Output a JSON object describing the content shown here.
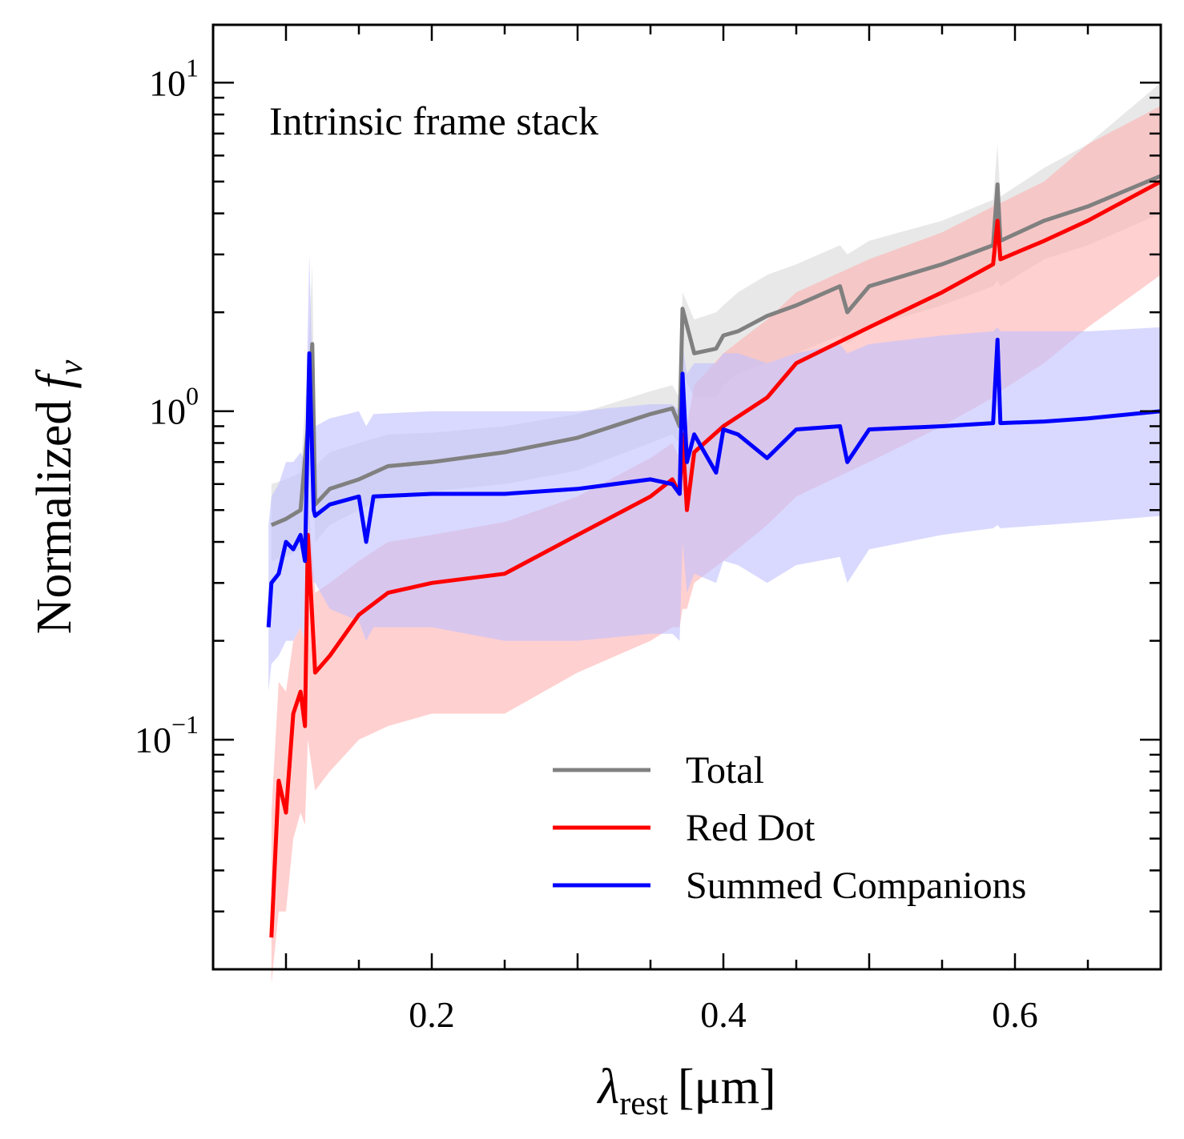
{
  "chart_data": {
    "type": "line",
    "title": "",
    "annotation": "Intrinsic frame stack",
    "xlabel": {
      "symbol": "λ",
      "subscript": "rest",
      "unit": "[μm]"
    },
    "ylabel": {
      "text": "Normalized",
      "symbol": "f",
      "subscript": "ν"
    },
    "xlim": [
      0.05,
      0.7
    ],
    "ylim": [
      0.02,
      15
    ],
    "yscale": "log",
    "xticks": [
      {
        "value": 0.2,
        "label": "0.2"
      },
      {
        "value": 0.4,
        "label": "0.4"
      },
      {
        "value": 0.6,
        "label": "0.6"
      }
    ],
    "yticks": [
      {
        "value": 0.1,
        "base": "10",
        "exp": "−1"
      },
      {
        "value": 1,
        "base": "10",
        "exp": "0"
      },
      {
        "value": 10,
        "base": "10",
        "exp": "1"
      }
    ],
    "legend": {
      "position": "lower-right"
    },
    "grid": false,
    "series": [
      {
        "name": "Total",
        "color": "#808080",
        "band_color": "#d9d9d9",
        "x": [
          0.09,
          0.1,
          0.11,
          0.115,
          0.118,
          0.12,
          0.13,
          0.15,
          0.17,
          0.2,
          0.25,
          0.3,
          0.35,
          0.365,
          0.37,
          0.372,
          0.38,
          0.395,
          0.4,
          0.41,
          0.43,
          0.45,
          0.48,
          0.485,
          0.5,
          0.55,
          0.585,
          0.588,
          0.59,
          0.62,
          0.65,
          0.7
        ],
        "y": [
          0.45,
          0.47,
          0.5,
          0.9,
          1.6,
          0.52,
          0.58,
          0.62,
          0.68,
          0.7,
          0.75,
          0.83,
          0.98,
          1.02,
          0.9,
          2.05,
          1.5,
          1.55,
          1.7,
          1.75,
          1.95,
          2.1,
          2.4,
          2.0,
          2.4,
          2.8,
          3.2,
          4.9,
          3.3,
          3.8,
          4.2,
          5.2
        ],
        "lower": [
          0.35,
          0.36,
          0.38,
          0.55,
          0.8,
          0.4,
          0.45,
          0.5,
          0.55,
          0.57,
          0.6,
          0.66,
          0.8,
          0.85,
          0.8,
          1.3,
          1.1,
          1.1,
          1.2,
          1.3,
          1.4,
          1.5,
          1.7,
          1.6,
          1.8,
          2.1,
          2.4,
          2.5,
          2.4,
          2.9,
          3.2,
          4.0
        ],
        "upper": [
          0.6,
          0.62,
          0.65,
          1.4,
          2.8,
          0.68,
          0.75,
          0.8,
          0.85,
          0.86,
          0.9,
          0.98,
          1.15,
          1.2,
          1.1,
          2.3,
          1.9,
          2.0,
          2.1,
          2.3,
          2.6,
          2.8,
          3.2,
          3.0,
          3.3,
          3.8,
          4.4,
          6.5,
          4.5,
          5.5,
          6.5,
          10.0
        ]
      },
      {
        "name": "Red Dot",
        "color": "#ff0000",
        "band_color": "#ffb0b0",
        "x": [
          0.09,
          0.095,
          0.1,
          0.105,
          0.11,
          0.113,
          0.115,
          0.12,
          0.13,
          0.15,
          0.17,
          0.2,
          0.25,
          0.3,
          0.35,
          0.365,
          0.37,
          0.372,
          0.375,
          0.38,
          0.4,
          0.43,
          0.45,
          0.5,
          0.55,
          0.585,
          0.588,
          0.59,
          0.62,
          0.65,
          0.7
        ],
        "y": [
          0.025,
          0.075,
          0.06,
          0.12,
          0.14,
          0.11,
          0.42,
          0.16,
          0.18,
          0.24,
          0.28,
          0.3,
          0.32,
          0.42,
          0.55,
          0.62,
          0.56,
          0.85,
          0.5,
          0.75,
          0.9,
          1.1,
          1.4,
          1.8,
          2.3,
          2.8,
          3.8,
          2.9,
          3.3,
          3.8,
          5.0
        ],
        "lower": [
          0.018,
          0.03,
          0.03,
          0.05,
          0.06,
          0.055,
          0.1,
          0.07,
          0.08,
          0.1,
          0.11,
          0.12,
          0.12,
          0.16,
          0.2,
          0.22,
          0.22,
          0.25,
          0.25,
          0.3,
          0.35,
          0.45,
          0.55,
          0.7,
          0.9,
          1.1,
          1.3,
          1.15,
          1.4,
          1.8,
          2.6
        ],
        "upper": [
          0.06,
          0.15,
          0.14,
          0.2,
          0.22,
          0.2,
          0.55,
          0.28,
          0.3,
          0.35,
          0.4,
          0.42,
          0.46,
          0.55,
          0.72,
          0.8,
          0.72,
          1.4,
          0.9,
          1.2,
          1.5,
          1.9,
          2.3,
          2.9,
          3.5,
          4.2,
          5.0,
          4.3,
          5.0,
          6.5,
          8.5
        ]
      },
      {
        "name": "Summed Companions",
        "color": "#0000ff",
        "band_color": "#c0c0ff",
        "x": [
          0.088,
          0.09,
          0.095,
          0.1,
          0.105,
          0.11,
          0.113,
          0.116,
          0.119,
          0.12,
          0.13,
          0.15,
          0.155,
          0.16,
          0.2,
          0.25,
          0.3,
          0.35,
          0.365,
          0.37,
          0.372,
          0.375,
          0.38,
          0.395,
          0.4,
          0.41,
          0.43,
          0.45,
          0.48,
          0.485,
          0.5,
          0.55,
          0.585,
          0.588,
          0.59,
          0.62,
          0.65,
          0.7
        ],
        "y": [
          0.22,
          0.3,
          0.32,
          0.4,
          0.38,
          0.42,
          0.35,
          1.5,
          0.5,
          0.48,
          0.52,
          0.55,
          0.4,
          0.55,
          0.56,
          0.56,
          0.58,
          0.62,
          0.6,
          0.56,
          1.3,
          0.7,
          0.85,
          0.65,
          0.88,
          0.85,
          0.72,
          0.88,
          0.9,
          0.7,
          0.88,
          0.9,
          0.92,
          1.65,
          0.92,
          0.93,
          0.95,
          1.0
        ],
        "lower": [
          0.14,
          0.17,
          0.18,
          0.2,
          0.2,
          0.22,
          0.2,
          0.35,
          0.3,
          0.3,
          0.25,
          0.23,
          0.2,
          0.22,
          0.22,
          0.2,
          0.2,
          0.21,
          0.21,
          0.2,
          0.4,
          0.28,
          0.32,
          0.3,
          0.35,
          0.34,
          0.3,
          0.34,
          0.36,
          0.3,
          0.38,
          0.42,
          0.44,
          0.45,
          0.44,
          0.45,
          0.46,
          0.48
        ],
        "upper": [
          0.45,
          0.55,
          0.6,
          0.7,
          0.7,
          0.75,
          0.7,
          3.0,
          0.95,
          0.9,
          0.95,
          1.0,
          0.9,
          0.98,
          1.0,
          1.0,
          1.0,
          1.05,
          1.05,
          1.0,
          1.6,
          1.3,
          1.4,
          1.4,
          1.5,
          1.5,
          1.4,
          1.5,
          1.6,
          1.5,
          1.6,
          1.7,
          1.75,
          1.8,
          1.75,
          1.75,
          1.75,
          1.8
        ]
      }
    ]
  }
}
